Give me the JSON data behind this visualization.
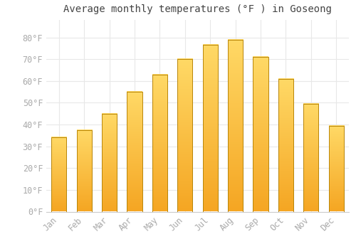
{
  "title": "Average monthly temperatures (°F ) in Goseong",
  "months": [
    "Jan",
    "Feb",
    "Mar",
    "Apr",
    "May",
    "Jun",
    "Jul",
    "Aug",
    "Sep",
    "Oct",
    "Nov",
    "Dec"
  ],
  "values": [
    34,
    37.5,
    45,
    55,
    63,
    70,
    76.5,
    79,
    71,
    61,
    49.5,
    39.5
  ],
  "bar_color_bottom": "#F5A623",
  "bar_color_top": "#FFD966",
  "bar_edge_color": "#B8860B",
  "ylim": [
    0,
    88
  ],
  "yticks": [
    0,
    10,
    20,
    30,
    40,
    50,
    60,
    70,
    80
  ],
  "ytick_labels": [
    "0°F",
    "10°F",
    "20°F",
    "30°F",
    "40°F",
    "50°F",
    "60°F",
    "70°F",
    "80°F"
  ],
  "background_color": "#ffffff",
  "grid_color": "#e8e8e8",
  "title_fontsize": 10,
  "tick_fontsize": 8.5,
  "tick_color": "#aaaaaa",
  "bar_width": 0.6
}
